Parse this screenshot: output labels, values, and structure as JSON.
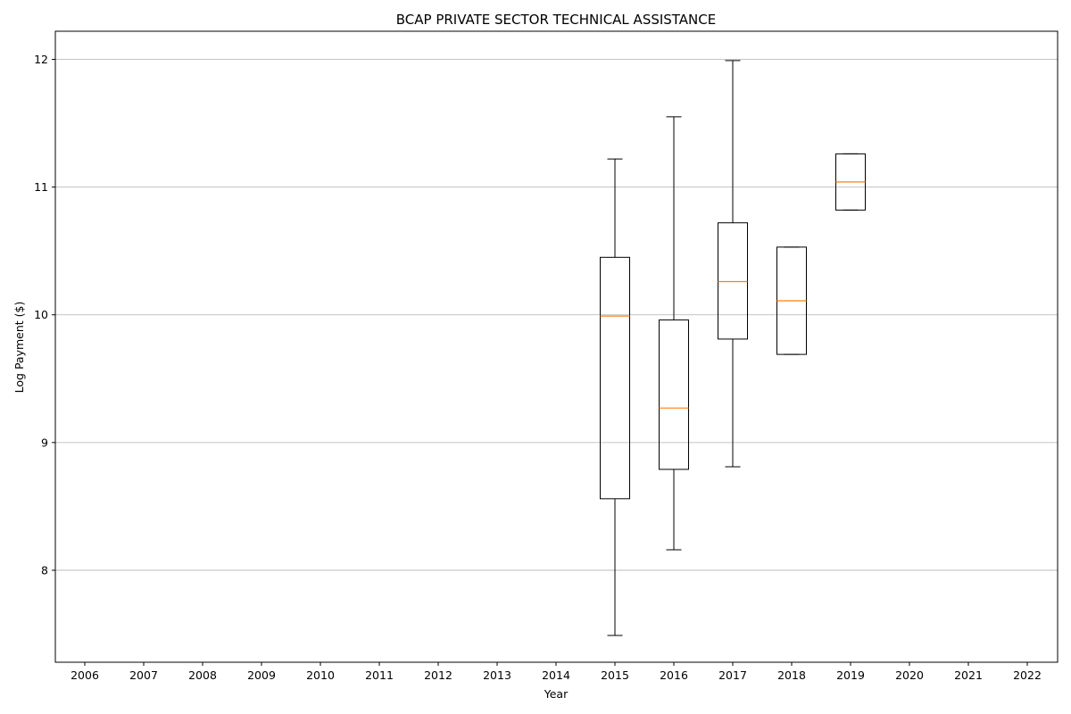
{
  "chart_data": {
    "type": "boxplot",
    "title": "BCAP PRIVATE SECTOR TECHNICAL ASSISTANCE",
    "xlabel": "Year",
    "ylabel": "Log Payment ($)",
    "categories": [
      "2006",
      "2007",
      "2008",
      "2009",
      "2010",
      "2011",
      "2012",
      "2013",
      "2014",
      "2015",
      "2016",
      "2017",
      "2018",
      "2019",
      "2020",
      "2021",
      "2022"
    ],
    "yticks": [
      8,
      9,
      10,
      11,
      12
    ],
    "ylim": [
      7.28,
      12.22
    ],
    "grid": "horizontal",
    "colors": {
      "box": "#000000",
      "median": "#ff7f0e",
      "grid": "#b0b0b0"
    },
    "boxes": [
      {
        "year": "2015",
        "whisker_low": 7.49,
        "q1": 8.56,
        "median": 9.99,
        "q3": 10.45,
        "whisker_high": 11.22
      },
      {
        "year": "2016",
        "whisker_low": 8.16,
        "q1": 8.79,
        "median": 9.27,
        "q3": 9.96,
        "whisker_high": 11.55
      },
      {
        "year": "2017",
        "whisker_low": 8.81,
        "q1": 9.81,
        "median": 10.26,
        "q3": 10.72,
        "whisker_high": 11.99
      },
      {
        "year": "2018",
        "whisker_low": 9.69,
        "q1": 9.69,
        "median": 10.11,
        "q3": 10.53,
        "whisker_high": 10.53
      },
      {
        "year": "2019",
        "whisker_low": 10.82,
        "q1": 10.82,
        "median": 11.04,
        "q3": 11.26,
        "whisker_high": 11.26
      }
    ]
  }
}
